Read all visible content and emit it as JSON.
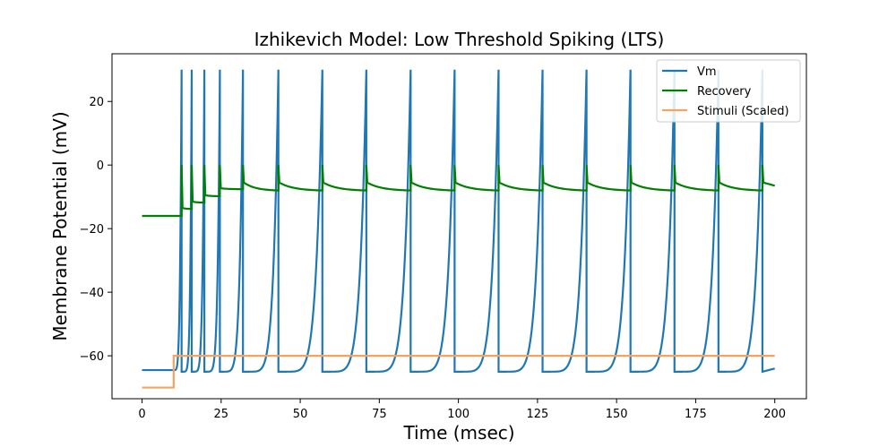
{
  "chart_data": {
    "type": "line",
    "title": "Izhikevich Model: Low Threshold Spiking (LTS)",
    "xlabel": "Time (msec)",
    "ylabel": "Membrane Potential (mV)",
    "xlim": [
      -9.5,
      210
    ],
    "ylim": [
      -73.5,
      35
    ],
    "xticks": [
      0,
      25,
      50,
      75,
      100,
      125,
      150,
      175,
      200
    ],
    "yticks": [
      -60,
      -40,
      -20,
      0,
      20
    ],
    "grid": false,
    "legend_position": "top-right",
    "stimulus_onset": 10,
    "spike_times": [
      12.5,
      15.7,
      19.7,
      24.6,
      31.9,
      43.1,
      57.0,
      70.9,
      84.9,
      98.8,
      112.7,
      126.6,
      140.5,
      154.4,
      168.3,
      182.2,
      196.1
    ],
    "series": [
      {
        "name": "Vm",
        "color": "#1f77b4",
        "rest": -64.5,
        "peak": 30,
        "reset": -65,
        "end_value": -64
      },
      {
        "name": "Recovery",
        "color": "#008000",
        "rest": -16,
        "after_spike_peak": 0,
        "steady_trough": -8,
        "end_value": -6.5
      },
      {
        "name": "Stimuli (Scaled)",
        "color": "#f4a460",
        "x": [
          0,
          10,
          10,
          200
        ],
        "y": [
          -70,
          -70,
          -60,
          -60
        ]
      }
    ]
  }
}
